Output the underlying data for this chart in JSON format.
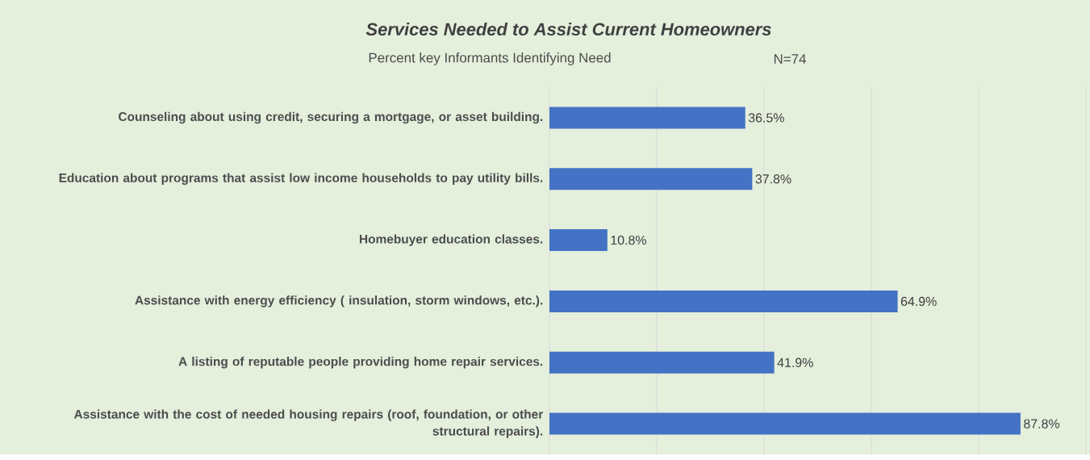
{
  "chart_data": {
    "type": "bar",
    "orientation": "horizontal",
    "title": "Services Needed to Assist Current Homeowners",
    "subtitle": "Percent key Informants Identifying Need",
    "annotations": [
      "N=74"
    ],
    "categories": [
      "Counseling about using credit, securing a mortgage, or asset building.",
      "Education about programs that assist low income households to pay utility bills.",
      "Homebuyer education classes.",
      "Assistance with energy efficiency ( insulation, storm windows, etc.).",
      "A listing of reputable people providing home repair services.",
      "Assistance with the cost of needed housing repairs (roof, foundation, or other structural repairs)."
    ],
    "values": [
      36.5,
      37.8,
      10.8,
      64.9,
      41.9,
      87.8
    ],
    "value_labels": [
      "36.5%",
      "37.8%",
      "10.8%",
      "64.9%",
      "41.9%",
      "87.8%"
    ],
    "color": "#4472c4",
    "xlim": [
      0,
      100
    ],
    "xticks": [
      {
        "value": 0,
        "label": null
      },
      {
        "value": 20,
        "label": null
      },
      {
        "value": 40,
        "label": null
      },
      {
        "value": 60,
        "label": null
      },
      {
        "value": 80,
        "label": null
      },
      {
        "value": 100,
        "label": null
      }
    ],
    "tick_labels": "y",
    "grid": "x"
  }
}
